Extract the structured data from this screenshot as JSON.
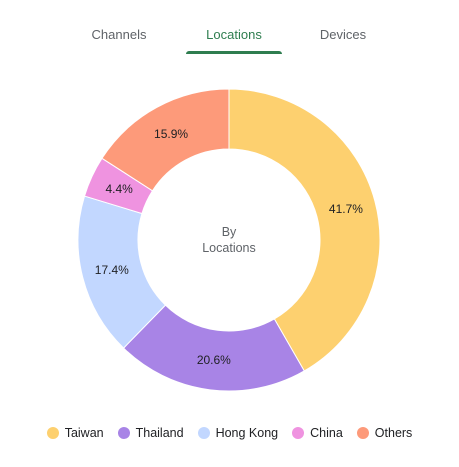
{
  "tabs": [
    {
      "label": "Channels",
      "active": false
    },
    {
      "label": "Locations",
      "active": true
    },
    {
      "label": "Devices",
      "active": false
    }
  ],
  "accent_color": "#2e7d4f",
  "center_label": {
    "line1": "By",
    "line2": "Locations"
  },
  "chart_data": {
    "type": "pie",
    "donut": true,
    "categories": [
      "Taiwan",
      "Thailand",
      "Hong Kong",
      "China",
      "Others"
    ],
    "values": [
      41.7,
      20.6,
      17.4,
      4.4,
      15.9
    ],
    "data_labels": [
      "41.7%",
      "20.6%",
      "17.4%",
      "4.4%",
      "15.9%"
    ],
    "colors": [
      "#fdd06f",
      "#a884e6",
      "#c2d7ff",
      "#ef93e0",
      "#fd9a7a"
    ],
    "legend_position": "bottom"
  }
}
